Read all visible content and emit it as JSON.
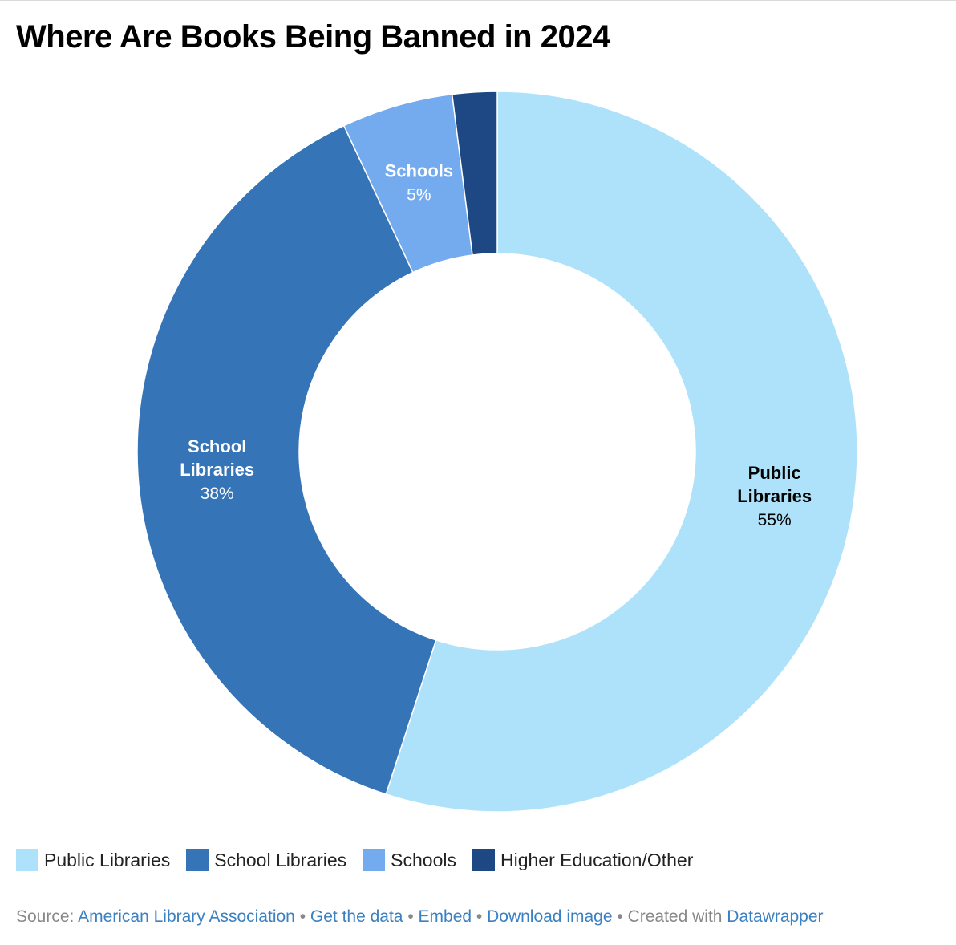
{
  "title": "Where Are Books Being Banned in 2024",
  "chart_data": {
    "type": "pie",
    "style": "donut",
    "categories": [
      "Public Libraries",
      "School Libraries",
      "Schools",
      "Higher Education/Other"
    ],
    "values": [
      55,
      38,
      5,
      2
    ],
    "colors": [
      "#aee1fa",
      "#3574b7",
      "#74aaee",
      "#1e4884"
    ],
    "label_colors": [
      "#000000",
      "#ffffff",
      "#ffffff",
      "#ffffff"
    ],
    "data_labels": [
      {
        "name_lines": [
          "Public",
          "Libraries"
        ],
        "value": "55%"
      },
      {
        "name_lines": [
          "School",
          "Libraries"
        ],
        "value": "38%"
      },
      {
        "name_lines": [
          "Schools"
        ],
        "value": "5%"
      },
      null
    ],
    "legend_position": "bottom-left"
  },
  "footer": {
    "source_prefix": "Source: ",
    "source_link": "American Library Association",
    "sep1": " • ",
    "get_data": "Get the data",
    "sep2": " • ",
    "embed": "Embed",
    "sep3": "  • ",
    "download": "Download image",
    "sep4": " • ",
    "created_with": "Created with ",
    "datawrapper": "Datawrapper"
  }
}
